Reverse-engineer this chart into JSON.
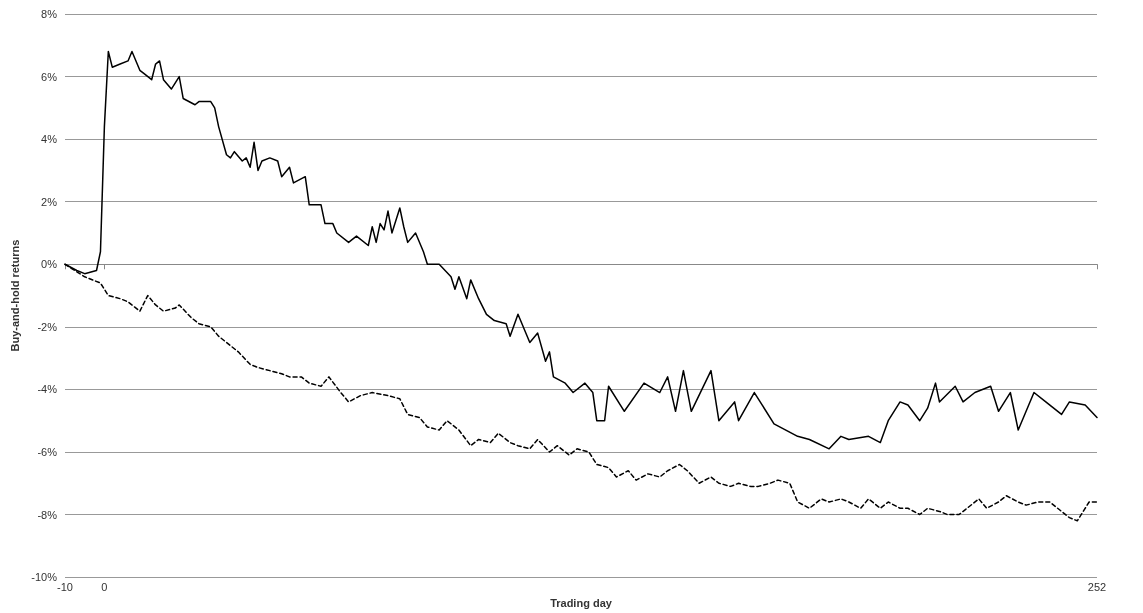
{
  "chart_data": {
    "type": "line",
    "xlabel": "Trading day",
    "ylabel": "Buy-and-hold returns",
    "xlim": [
      -10,
      252
    ],
    "xticks": [
      -10,
      0,
      252
    ],
    "ylim": [
      -10,
      8
    ],
    "yticks": [
      {
        "value": -10,
        "label": "-10%"
      },
      {
        "value": -8,
        "label": "-8%"
      },
      {
        "value": -6,
        "label": "-6%"
      },
      {
        "value": -4,
        "label": "-4%"
      },
      {
        "value": -2,
        "label": "-2%"
      },
      {
        "value": 0,
        "label": "0%"
      },
      {
        "value": 2,
        "label": "2%"
      },
      {
        "value": 4,
        "label": "4%"
      },
      {
        "value": 6,
        "label": "6%"
      },
      {
        "value": 8,
        "label": "8%"
      }
    ],
    "grid": "y",
    "marker": "none",
    "series": [
      {
        "color": "#000000",
        "line_style": "solid",
        "x": [
          -10,
          -7,
          -5,
          -2,
          -1,
          0,
          1,
          2,
          4,
          6,
          7,
          9,
          10,
          12,
          13,
          14,
          15,
          17,
          19,
          20,
          23,
          24,
          27,
          28,
          29,
          31,
          32,
          33,
          35,
          36,
          37,
          38,
          39,
          40,
          42,
          44,
          45,
          47,
          48,
          51,
          52,
          55,
          56,
          58,
          59,
          62,
          64,
          67,
          68,
          69,
          70,
          71,
          72,
          73,
          75,
          76,
          77,
          79,
          81,
          82,
          85,
          88,
          89,
          90,
          92,
          93,
          95,
          97,
          99,
          102,
          103,
          105,
          108,
          110,
          112,
          113,
          114,
          117,
          119,
          122,
          124,
          125,
          127,
          128,
          132,
          137,
          141,
          143,
          145,
          147,
          149,
          154,
          156,
          160,
          161,
          165,
          170,
          173,
          176,
          179,
          184,
          187,
          189,
          194,
          197,
          199,
          202,
          204,
          207,
          209,
          211,
          212,
          216,
          218,
          221,
          225,
          227,
          230,
          232,
          234,
          236,
          239,
          243,
          245,
          249,
          252
        ],
        "values": [
          0,
          -0.2,
          -0.3,
          -0.2,
          0.4,
          4.4,
          6.8,
          6.3,
          6.4,
          6.5,
          6.8,
          6.2,
          6.1,
          5.9,
          6.4,
          6.5,
          5.9,
          5.6,
          6.0,
          5.3,
          5.1,
          5.2,
          5.2,
          5.0,
          4.4,
          3.5,
          3.4,
          3.6,
          3.3,
          3.4,
          3.1,
          3.9,
          3.0,
          3.3,
          3.4,
          3.3,
          2.8,
          3.1,
          2.6,
          2.8,
          1.9,
          1.9,
          1.3,
          1.3,
          1.0,
          0.7,
          0.9,
          0.6,
          1.2,
          0.7,
          1.3,
          1.1,
          1.7,
          1.0,
          1.8,
          1.2,
          0.7,
          1.0,
          0.4,
          0,
          0,
          -0.4,
          -0.8,
          -0.4,
          -1.1,
          -0.5,
          -1.1,
          -1.6,
          -1.8,
          -1.9,
          -2.3,
          -1.6,
          -2.5,
          -2.2,
          -3.1,
          -2.8,
          -3.6,
          -3.8,
          -4.1,
          -3.8,
          -4.1,
          -5.0,
          -5.0,
          -3.9,
          -4.7,
          -3.8,
          -4.1,
          -3.6,
          -4.7,
          -3.4,
          -4.7,
          -3.4,
          -5.0,
          -4.4,
          -5.0,
          -4.1,
          -5.1,
          -5.3,
          -5.5,
          -5.6,
          -5.9,
          -5.5,
          -5.6,
          -5.5,
          -5.7,
          -5.0,
          -4.4,
          -4.5,
          -5.0,
          -4.6,
          -3.8,
          -4.4,
          -3.9,
          -4.4,
          -4.1,
          -3.9,
          -4.7,
          -4.1,
          -5.3,
          -4.7,
          -4.1,
          -4.4,
          -4.8,
          -4.4,
          -4.5,
          -4.9
        ]
      },
      {
        "color": "#000000",
        "line_style": "dashed",
        "x": [
          -10,
          -5,
          -1,
          1,
          4,
          6,
          9,
          11,
          13,
          15,
          18,
          19,
          22,
          24,
          27,
          29,
          32,
          34,
          37,
          39,
          42,
          45,
          47,
          50,
          52,
          55,
          57,
          60,
          62,
          65,
          68,
          72,
          75,
          77,
          80,
          82,
          85,
          87,
          90,
          93,
          95,
          98,
          100,
          103,
          105,
          108,
          110,
          113,
          115,
          118,
          120,
          123,
          125,
          128,
          130,
          133,
          135,
          138,
          141,
          143,
          146,
          148,
          151,
          154,
          156,
          159,
          161,
          164,
          166,
          169,
          171,
          174,
          176,
          179,
          182,
          184,
          187,
          189,
          192,
          194,
          197,
          199,
          202,
          204,
          207,
          209,
          212,
          214,
          217,
          219,
          222,
          224,
          227,
          229,
          232,
          234,
          237,
          240,
          242,
          245,
          247,
          250,
          252
        ],
        "values": [
          0,
          -0.4,
          -0.6,
          -1.0,
          -1.1,
          -1.2,
          -1.5,
          -1.0,
          -1.3,
          -1.5,
          -1.4,
          -1.3,
          -1.7,
          -1.9,
          -2.0,
          -2.3,
          -2.6,
          -2.8,
          -3.2,
          -3.3,
          -3.4,
          -3.5,
          -3.6,
          -3.6,
          -3.8,
          -3.9,
          -3.6,
          -4.1,
          -4.4,
          -4.2,
          -4.1,
          -4.2,
          -4.3,
          -4.8,
          -4.9,
          -5.2,
          -5.3,
          -5.0,
          -5.3,
          -5.8,
          -5.6,
          -5.7,
          -5.4,
          -5.7,
          -5.8,
          -5.9,
          -5.6,
          -6.0,
          -5.8,
          -6.1,
          -5.9,
          -6.0,
          -6.4,
          -6.5,
          -6.8,
          -6.6,
          -6.9,
          -6.7,
          -6.8,
          -6.6,
          -6.4,
          -6.6,
          -7.0,
          -6.8,
          -7.0,
          -7.1,
          -7.0,
          -7.1,
          -7.1,
          -7.0,
          -6.9,
          -7.0,
          -7.6,
          -7.8,
          -7.5,
          -7.6,
          -7.5,
          -7.6,
          -7.8,
          -7.5,
          -7.8,
          -7.6,
          -7.8,
          -7.8,
          -8.0,
          -7.8,
          -7.9,
          -8.0,
          -8.0,
          -7.8,
          -7.5,
          -7.8,
          -7.6,
          -7.4,
          -7.6,
          -7.7,
          -7.6,
          -7.6,
          -7.8,
          -8.1,
          -8.2,
          -7.6,
          -7.6
        ]
      }
    ]
  }
}
